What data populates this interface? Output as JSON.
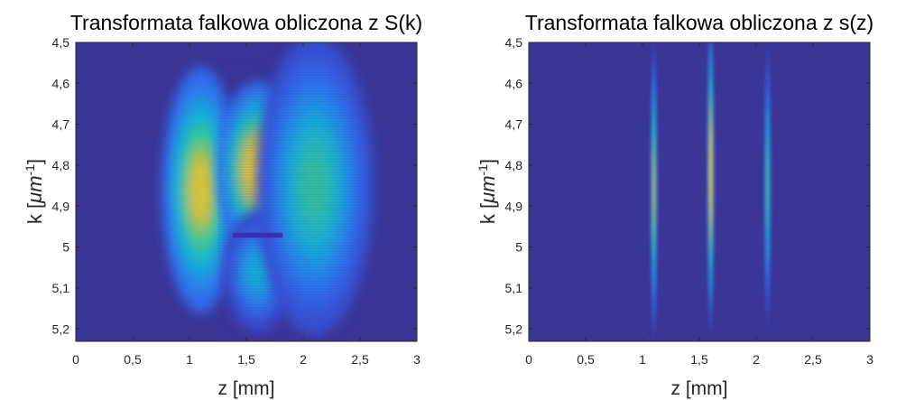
{
  "colors": {
    "background": "#3a3596",
    "colormap": [
      "#3e26a8",
      "#2f6ff0",
      "#12b1d8",
      "#3bc78f",
      "#d2bb3c",
      "#f9d326"
    ]
  },
  "chart_data": [
    {
      "type": "heatmap",
      "title": "Transformata falkowa obliczona z S(k)",
      "xlabel": "z [mm]",
      "ylabel": {
        "main": "k [",
        "unit": "μm",
        "exponent": "-1",
        "close": "]"
      },
      "xlim": [
        0,
        3
      ],
      "ylim": [
        4.5,
        5.23
      ],
      "y_reversed": true,
      "x_ticks": [
        "0",
        "0,5",
        "1",
        "1,5",
        "2",
        "2,5",
        "3"
      ],
      "x_tick_values": [
        0,
        0.5,
        1,
        1.5,
        2,
        2.5,
        3
      ],
      "y_ticks": [
        "4,5",
        "4,6",
        "4,7",
        "4,8",
        "4,9",
        "5",
        "5,1",
        "5,2"
      ],
      "y_tick_values": [
        4.5,
        4.6,
        4.7,
        4.8,
        4.9,
        5.0,
        5.1,
        5.2
      ],
      "blobs": [
        {
          "z": 1.1,
          "k": 4.86,
          "sz": 0.16,
          "sk": 0.14,
          "amplitude": 0.85
        },
        {
          "z": 1.6,
          "k": 4.81,
          "sz": 0.17,
          "sk": 0.1,
          "amplitude": 0.97
        },
        {
          "z": 1.6,
          "k": 5.06,
          "sz": 0.14,
          "sk": 0.07,
          "amplitude": 0.42
        },
        {
          "z": 2.1,
          "k": 4.85,
          "sz": 0.24,
          "sk": 0.17,
          "amplitude": 0.55
        }
      ]
    },
    {
      "type": "heatmap",
      "title": "Transformata falkowa obliczona z s(z)",
      "xlabel": "z [mm]",
      "ylabel": {
        "main": "k [",
        "unit": "μm",
        "exponent": "-1",
        "close": "]"
      },
      "xlim": [
        0,
        3
      ],
      "ylim": [
        4.5,
        5.23
      ],
      "y_reversed": true,
      "x_ticks": [
        "0",
        "0,5",
        "1",
        "1,5",
        "2",
        "2,5",
        "3"
      ],
      "x_tick_values": [
        0,
        0.5,
        1,
        1.5,
        2,
        2.5,
        3
      ],
      "y_ticks": [
        "4,5",
        "4,6",
        "4,7",
        "4,8",
        "4,9",
        "5",
        "5,1",
        "5,2"
      ],
      "y_tick_values": [
        4.5,
        4.6,
        4.7,
        4.8,
        4.9,
        5.0,
        5.1,
        5.2
      ],
      "ridges": [
        {
          "z": 1.1,
          "k": 4.86,
          "sk": 0.16,
          "amplitude": 0.78
        },
        {
          "z": 1.6,
          "k": 4.82,
          "sk": 0.17,
          "amplitude": 1.0
        },
        {
          "z": 2.1,
          "k": 4.85,
          "sk": 0.15,
          "amplitude": 0.6
        }
      ]
    }
  ]
}
